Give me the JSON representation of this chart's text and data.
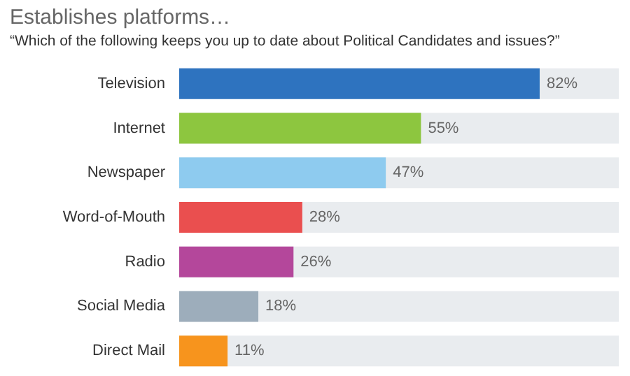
{
  "chart_data": {
    "type": "bar",
    "orientation": "horizontal",
    "title": "Establishes platforms…",
    "subtitle": "“Which of the following keeps you up to date about Political Candidates and issues?”",
    "categories": [
      "Television",
      "Internet",
      "Newspaper",
      "Word-of-Mouth",
      "Radio",
      "Social Media",
      "Direct Mail"
    ],
    "values": [
      82,
      55,
      47,
      28,
      26,
      18,
      11
    ],
    "colors": [
      "#2e73bf",
      "#8dc63f",
      "#8ecbef",
      "#ea4f4f",
      "#b4479b",
      "#9dadbb",
      "#f7941d"
    ],
    "value_labels": [
      "82%",
      "55%",
      "47%",
      "28%",
      "26%",
      "18%",
      "11%"
    ],
    "xlim": [
      0,
      100
    ]
  }
}
